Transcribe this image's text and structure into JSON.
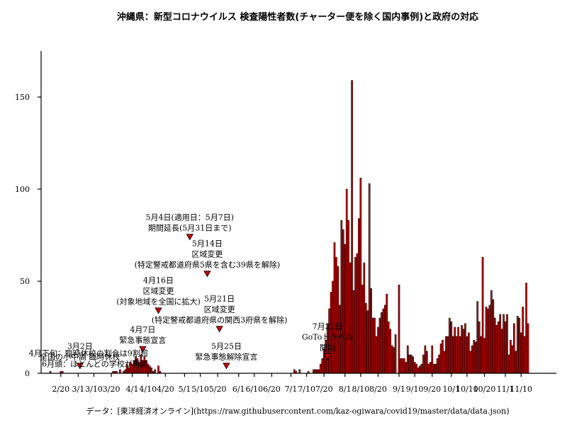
{
  "chart_data": {
    "type": "bar",
    "title": "沖縄県：新型コロナウイルス 検査陽性者数(チャーター便を除く国内事例)と政府の対応",
    "source": "データ：[東洋経済オンライン](https://raw.githubusercontent.com/kaz-ogiwara/covid19/master/data/data.json)",
    "ylim": [
      0,
      175
    ],
    "yticks": [
      0,
      50,
      100,
      150
    ],
    "xticks": [
      "2/20",
      "3/1",
      "3/10",
      "3/20",
      "4/1",
      "4/10",
      "4/20",
      "5/1",
      "5/10",
      "5/20",
      "6/1",
      "6/10",
      "6/20",
      "7/1",
      "7/10",
      "7/20",
      "8/1",
      "8/10",
      "8/20",
      "9/1",
      "9/10",
      "9/20",
      "10/1",
      "10/10",
      "10/20",
      "11/1",
      "11/10"
    ],
    "start_date": "2020-02-14",
    "values": [
      1,
      0,
      0,
      0,
      0,
      0,
      1,
      1,
      0,
      0,
      0,
      0,
      0,
      0,
      0,
      0,
      0,
      0,
      0,
      0,
      0,
      0,
      0,
      0,
      0,
      0,
      0,
      0,
      0,
      0,
      0,
      0,
      0,
      0,
      0,
      0,
      1,
      1,
      1,
      0,
      2,
      0,
      1,
      2,
      5,
      3,
      6,
      5,
      7,
      9,
      8,
      6,
      10,
      7,
      9,
      7,
      5,
      4,
      3,
      1,
      2,
      0,
      4,
      1,
      0,
      0,
      0,
      0,
      0,
      0,
      0,
      0,
      0,
      0,
      0,
      0,
      0,
      0,
      0,
      0,
      0,
      0,
      0,
      0,
      0,
      0,
      0,
      0,
      0,
      0,
      0,
      0,
      0,
      0,
      0,
      0,
      0,
      0,
      0,
      0,
      0,
      0,
      0,
      0,
      0,
      0,
      0,
      0,
      0,
      0,
      0,
      0,
      0,
      0,
      0,
      0,
      0,
      0,
      0,
      0,
      0,
      0,
      0,
      0,
      0,
      0,
      0,
      0,
      0,
      0,
      0,
      0,
      0,
      0,
      0,
      0,
      0,
      0,
      0,
      0,
      2,
      1,
      0,
      2,
      0,
      0,
      0,
      0,
      1,
      0,
      0,
      2,
      2,
      2,
      2,
      5,
      8,
      13,
      18,
      27,
      35,
      44,
      50,
      71,
      63,
      58,
      37,
      83,
      78,
      70,
      100,
      83,
      60,
      159,
      45,
      63,
      65,
      84,
      106,
      48,
      60,
      38,
      34,
      103,
      46,
      30,
      30,
      20,
      25,
      30,
      33,
      35,
      37,
      43,
      28,
      24,
      15,
      14,
      21,
      0,
      48,
      8,
      8,
      8,
      6,
      15,
      10,
      10,
      9,
      6,
      5,
      3,
      4,
      5,
      10,
      15,
      12,
      5,
      6,
      15,
      5,
      5,
      8,
      10,
      16,
      18,
      12,
      20,
      20,
      30,
      28,
      20,
      25,
      20,
      25,
      20,
      26,
      24,
      27,
      20,
      22,
      12,
      15,
      18,
      17,
      39,
      28,
      20,
      63,
      19,
      36,
      35,
      37,
      45,
      40,
      30,
      26,
      28,
      32,
      24,
      32,
      28,
      32,
      10,
      18,
      15,
      27,
      12,
      31,
      30,
      22,
      36,
      20,
      49,
      27
    ],
    "annotations": [
      {
        "date": "2020-03-02",
        "level": 4,
        "lines": [
          "3月2日",
          "全国の小中高 臨時休校"
        ]
      },
      {
        "date": "2020-04-07",
        "level": 13,
        "lines": [
          "4月7日",
          "緊急事態宣言"
        ]
      },
      {
        "date": "2020-04-16",
        "level": 34,
        "lines": [
          "4月16日",
          "区域変更",
          "(対象地域を全国に拡大)"
        ]
      },
      {
        "date": "2020-05-04",
        "level": 74,
        "lines": [
          "5月4日(適用日：5月7日)",
          "期間延長(5月31日まで)"
        ]
      },
      {
        "date": "2020-05-14",
        "level": 54,
        "lines": [
          "5月14日",
          "区域変更",
          "(特定警戒都道府県5県を含む39県を解除)"
        ]
      },
      {
        "date": "2020-05-21",
        "level": 24,
        "lines": [
          "5月21日",
          "区域変更",
          "(特定警戒都道府県の関西3府県を解除)"
        ]
      },
      {
        "date": "2020-05-25",
        "level": 4,
        "lines": [
          "5月25日",
          "緊急事態解除宣言"
        ]
      },
      {
        "date": "2020-07-22",
        "level": 9,
        "lines": [
          "7月22日",
          "GoToトラベル",
          "開始"
        ]
      }
    ],
    "extra_notes": [
      {
        "date": "2020-04-10",
        "level": 9,
        "lines": [
          "4月下旬：臨時休校の割合は9割超",
          "6月頭：ほとんどの学校が再開"
        ]
      }
    ]
  }
}
